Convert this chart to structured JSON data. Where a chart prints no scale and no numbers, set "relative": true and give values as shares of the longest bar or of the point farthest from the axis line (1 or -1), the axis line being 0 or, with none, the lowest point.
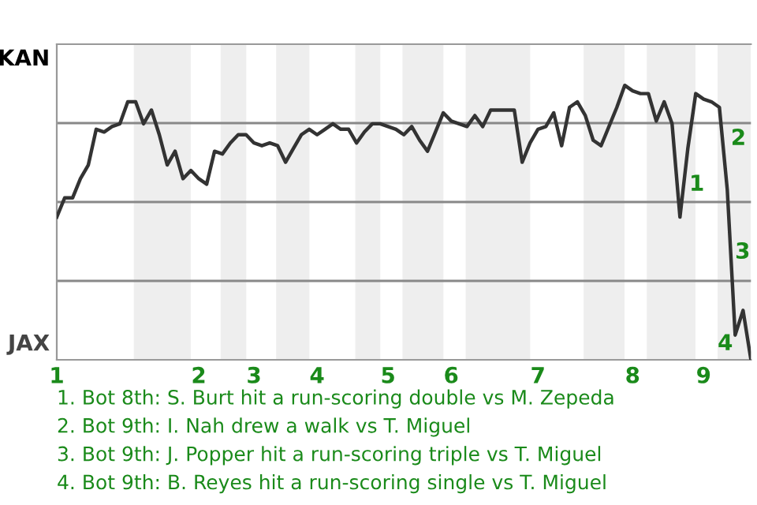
{
  "chart_data": {
    "type": "line",
    "relative": true,
    "categories": [
      "1",
      null,
      null,
      null,
      null,
      null,
      null,
      null,
      null,
      null,
      null,
      null,
      null,
      null,
      null,
      null,
      null,
      null,
      "2",
      null,
      null,
      null,
      null,
      null,
      null,
      "3",
      null,
      null,
      null,
      null,
      null,
      null,
      null,
      "4",
      null,
      null,
      null,
      null,
      null,
      null,
      null,
      null,
      "5",
      null,
      null,
      null,
      null,
      null,
      null,
      null,
      "6",
      null,
      null,
      null,
      null,
      null,
      null,
      null,
      null,
      null,
      null,
      "7",
      null,
      null,
      null,
      null,
      null,
      null,
      null,
      null,
      null,
      null,
      null,
      "8",
      null,
      null,
      null,
      null,
      null,
      null,
      null,
      null,
      "9",
      null,
      null,
      null,
      null,
      null,
      null
    ],
    "series": [
      {
        "color": "#333333",
        "values": [
          0.52,
          0.59,
          0.59,
          0.66,
          0.71,
          0.84,
          0.83,
          0.85,
          0.86,
          0.94,
          0.94,
          0.86,
          0.91,
          0.82,
          0.71,
          0.76,
          0.66,
          0.69,
          0.66,
          0.64,
          0.76,
          0.75,
          0.79,
          0.82,
          0.82,
          0.79,
          0.78,
          0.79,
          0.78,
          0.72,
          0.77,
          0.82,
          0.84,
          0.82,
          0.84,
          0.86,
          0.84,
          0.84,
          0.79,
          0.83,
          0.86,
          0.86,
          0.85,
          0.84,
          0.82,
          0.85,
          0.8,
          0.76,
          0.83,
          0.9,
          0.87,
          0.86,
          0.85,
          0.89,
          0.85,
          0.91,
          0.91,
          0.91,
          0.91,
          0.72,
          0.79,
          0.84,
          0.85,
          0.9,
          0.78,
          0.92,
          0.94,
          0.89,
          0.8,
          0.78,
          0.85,
          0.92,
          1,
          0.98,
          0.97,
          0.97,
          0.87,
          0.94,
          0.86,
          0.52,
          0.77,
          0.97,
          0.95,
          0.94,
          0.92,
          0.62,
          0.09,
          0.18,
          0
        ]
      }
    ],
    "line_style": "solid",
    "marker": "none",
    "annotations": [
      "KAN",
      "JAX",
      "1",
      "2",
      "3",
      "4",
      "1. Bot 8th: S. Burt hit a run-scoring double vs M. Zepeda",
      "2. Bot 9th: I. Nah drew a walk vs T. Miguel",
      "3. Bot 9th: J. Popper hit a run-scoring triple vs T. Miguel",
      "4. Bot 9th: B. Reyes hit a run-scoring single vs T. Miguel"
    ]
  }
}
